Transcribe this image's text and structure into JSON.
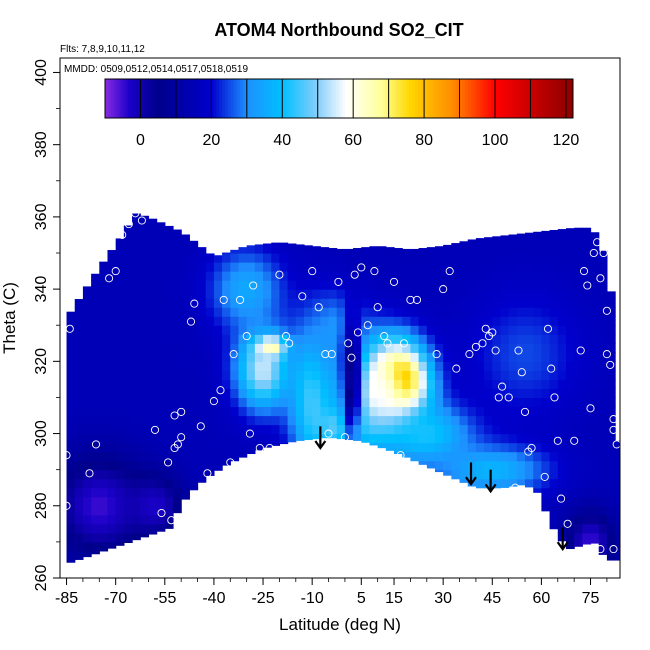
{
  "chart_data": {
    "type": "heatmap",
    "title": "ATOM4 Northbound SO2_CIT",
    "flights_note": "Flts: 7,8,9,10,11,12",
    "dates_note": "MMDD: 0509,0512,0514,0517,0518,0519",
    "xlabel": "Latitude (deg N)",
    "ylabel": "Theta (C)",
    "xlim": [
      -87,
      84
    ],
    "ylim": [
      260,
      404
    ],
    "x_ticks": [
      -85,
      -70,
      -55,
      -40,
      -25,
      -10,
      5,
      15,
      30,
      45,
      60,
      75
    ],
    "y_ticks": [
      260,
      280,
      300,
      320,
      340,
      360,
      380,
      400
    ],
    "colorbar": {
      "min": -10,
      "max": 122,
      "ticks": [
        0,
        20,
        40,
        60,
        80,
        100,
        120
      ],
      "stops": [
        {
          "v": -10,
          "color": "#8a2be2"
        },
        {
          "v": -3,
          "color": "#1a00c8"
        },
        {
          "v": 5,
          "color": "#00008b"
        },
        {
          "v": 20,
          "color": "#0000cd"
        },
        {
          "v": 30,
          "color": "#1e90ff"
        },
        {
          "v": 40,
          "color": "#00bfff"
        },
        {
          "v": 50,
          "color": "#87cefa"
        },
        {
          "v": 58,
          "color": "#ffffff"
        },
        {
          "v": 68,
          "color": "#ffff99"
        },
        {
          "v": 76,
          "color": "#ffd700"
        },
        {
          "v": 88,
          "color": "#ff8c00"
        },
        {
          "v": 100,
          "color": "#ff0000"
        },
        {
          "v": 122,
          "color": "#8b0000"
        }
      ]
    },
    "field_region": {
      "top": [
        [
          -85,
          332
        ],
        [
          -75,
          346
        ],
        [
          -68,
          355
        ],
        [
          -64,
          361
        ],
        [
          -60,
          360
        ],
        [
          -50,
          356
        ],
        [
          -40,
          349
        ],
        [
          -30,
          352
        ],
        [
          -20,
          353
        ],
        [
          -10,
          352
        ],
        [
          0,
          351
        ],
        [
          10,
          352
        ],
        [
          20,
          351
        ],
        [
          30,
          352
        ],
        [
          40,
          354
        ],
        [
          50,
          355
        ],
        [
          60,
          356
        ],
        [
          70,
          357
        ],
        [
          75,
          357
        ],
        [
          78,
          354
        ],
        [
          80,
          345
        ],
        [
          82,
          336
        ],
        [
          82,
          318
        ],
        [
          83,
          298
        ]
      ],
      "bottom": [
        [
          83,
          265
        ],
        [
          80,
          265
        ],
        [
          76,
          270
        ],
        [
          72,
          269
        ],
        [
          68,
          268
        ],
        [
          65,
          272
        ],
        [
          62,
          276
        ],
        [
          60,
          283
        ],
        [
          55,
          286
        ],
        [
          48,
          285
        ],
        [
          40,
          285
        ],
        [
          35,
          287
        ],
        [
          25,
          291
        ],
        [
          15,
          295
        ],
        [
          5,
          298
        ],
        [
          -5,
          299
        ],
        [
          -15,
          298
        ],
        [
          -25,
          296
        ],
        [
          -35,
          292
        ],
        [
          -42,
          288
        ],
        [
          -48,
          283
        ],
        [
          -52,
          277
        ],
        [
          -53,
          274
        ],
        [
          -53,
          264
        ],
        [
          -85,
          264
        ]
      ]
    },
    "background_value": 15,
    "hotspots": [
      {
        "x": 16,
        "y": 314,
        "value": 115,
        "sx": 6,
        "sy": 7
      },
      {
        "x": 10,
        "y": 312,
        "value": 60,
        "sx": 9,
        "sy": 10
      },
      {
        "x": -23,
        "y": 324,
        "value": 105,
        "sx": 3,
        "sy": 2
      },
      {
        "x": -25,
        "y": 318,
        "value": 55,
        "sx": 6,
        "sy": 8
      },
      {
        "x": -10,
        "y": 310,
        "value": 45,
        "sx": 5,
        "sy": 14
      },
      {
        "x": 0,
        "y": 302,
        "value": 50,
        "sx": 6,
        "sy": 4
      },
      {
        "x": 25,
        "y": 300,
        "value": 42,
        "sx": 10,
        "sy": 6
      },
      {
        "x": 45,
        "y": 290,
        "value": 38,
        "sx": 12,
        "sy": 5
      },
      {
        "x": -30,
        "y": 340,
        "value": 35,
        "sx": 8,
        "sy": 8
      },
      {
        "x": -2,
        "y": 328,
        "value": 32,
        "sx": 6,
        "sy": 8
      },
      {
        "x": 55,
        "y": 322,
        "value": 25,
        "sx": 12,
        "sy": 12
      },
      {
        "x": -75,
        "y": 280,
        "value": -5,
        "sx": 10,
        "sy": 10
      },
      {
        "x": -58,
        "y": 280,
        "value": -3,
        "sx": 6,
        "sy": 6
      },
      {
        "x": 75,
        "y": 270,
        "value": -5,
        "sx": 5,
        "sy": 6
      },
      {
        "x": 2,
        "y": 315,
        "value": 0,
        "sx": 2,
        "sy": 12
      }
    ],
    "sample_points": [
      [
        -85,
        294
      ],
      [
        -85,
        280
      ],
      [
        -84,
        329
      ],
      [
        -78,
        289
      ],
      [
        -76,
        297
      ],
      [
        -72,
        343
      ],
      [
        -70,
        345
      ],
      [
        -68,
        355
      ],
      [
        -66,
        358
      ],
      [
        -64,
        361
      ],
      [
        -62,
        359
      ],
      [
        -58,
        301
      ],
      [
        -56,
        278
      ],
      [
        -54,
        292
      ],
      [
        -53,
        276
      ],
      [
        -52,
        296
      ],
      [
        -52,
        305
      ],
      [
        -51,
        297
      ],
      [
        -50,
        306
      ],
      [
        -50,
        299
      ],
      [
        -48,
        280
      ],
      [
        -47,
        331
      ],
      [
        -46,
        336
      ],
      [
        -44,
        302
      ],
      [
        -42,
        289
      ],
      [
        -40,
        309
      ],
      [
        -38,
        312
      ],
      [
        -37,
        337
      ],
      [
        -35,
        292
      ],
      [
        -34,
        322
      ],
      [
        -32,
        337
      ],
      [
        -30,
        327
      ],
      [
        -29,
        300
      ],
      [
        -28,
        341
      ],
      [
        -26,
        296
      ],
      [
        -23,
        296
      ],
      [
        -20,
        344
      ],
      [
        -18,
        327
      ],
      [
        -17,
        325
      ],
      [
        -15,
        288
      ],
      [
        -13,
        338
      ],
      [
        -10,
        345
      ],
      [
        -8,
        335
      ],
      [
        -6,
        322
      ],
      [
        -5,
        300
      ],
      [
        -4,
        322
      ],
      [
        -2,
        342
      ],
      [
        0,
        299
      ],
      [
        1,
        325
      ],
      [
        2,
        321
      ],
      [
        3,
        344
      ],
      [
        4,
        328
      ],
      [
        5,
        346
      ],
      [
        7,
        330
      ],
      [
        9,
        345
      ],
      [
        10,
        335
      ],
      [
        12,
        327
      ],
      [
        13,
        325
      ],
      [
        15,
        342
      ],
      [
        17,
        294
      ],
      [
        18,
        325
      ],
      [
        20,
        337
      ],
      [
        22,
        337
      ],
      [
        24,
        290
      ],
      [
        28,
        322
      ],
      [
        30,
        340
      ],
      [
        32,
        345
      ],
      [
        34,
        318
      ],
      [
        38,
        322
      ],
      [
        40,
        324
      ],
      [
        42,
        325
      ],
      [
        43,
        329
      ],
      [
        44,
        327
      ],
      [
        45,
        328
      ],
      [
        46,
        323
      ],
      [
        47,
        310
      ],
      [
        48,
        313
      ],
      [
        50,
        310
      ],
      [
        52,
        285
      ],
      [
        53,
        323
      ],
      [
        54,
        317
      ],
      [
        55,
        306
      ],
      [
        56,
        295
      ],
      [
        57,
        296
      ],
      [
        58,
        278
      ],
      [
        59,
        272
      ],
      [
        60,
        266
      ],
      [
        61,
        288
      ],
      [
        62,
        329
      ],
      [
        63,
        318
      ],
      [
        64,
        310
      ],
      [
        65,
        298
      ],
      [
        66,
        282
      ],
      [
        68,
        275
      ],
      [
        70,
        298
      ],
      [
        72,
        323
      ],
      [
        74,
        341
      ],
      [
        76,
        350
      ],
      [
        77,
        353
      ],
      [
        78,
        343
      ],
      [
        79,
        350
      ],
      [
        80,
        334
      ],
      [
        80,
        322
      ],
      [
        81,
        319
      ],
      [
        82,
        304
      ],
      [
        82,
        301
      ],
      [
        83,
        297
      ],
      [
        82,
        268
      ],
      [
        78,
        268
      ],
      [
        75,
        307
      ],
      [
        73,
        345
      ]
    ],
    "arrows": [
      {
        "x": -7.5,
        "y_top": 302,
        "y_bottom": 296
      },
      {
        "x": 38.5,
        "y_top": 292,
        "y_bottom": 286
      },
      {
        "x": 44.5,
        "y_top": 290,
        "y_bottom": 284
      },
      {
        "x": 66.5,
        "y_top": 274,
        "y_bottom": 268
      }
    ]
  }
}
